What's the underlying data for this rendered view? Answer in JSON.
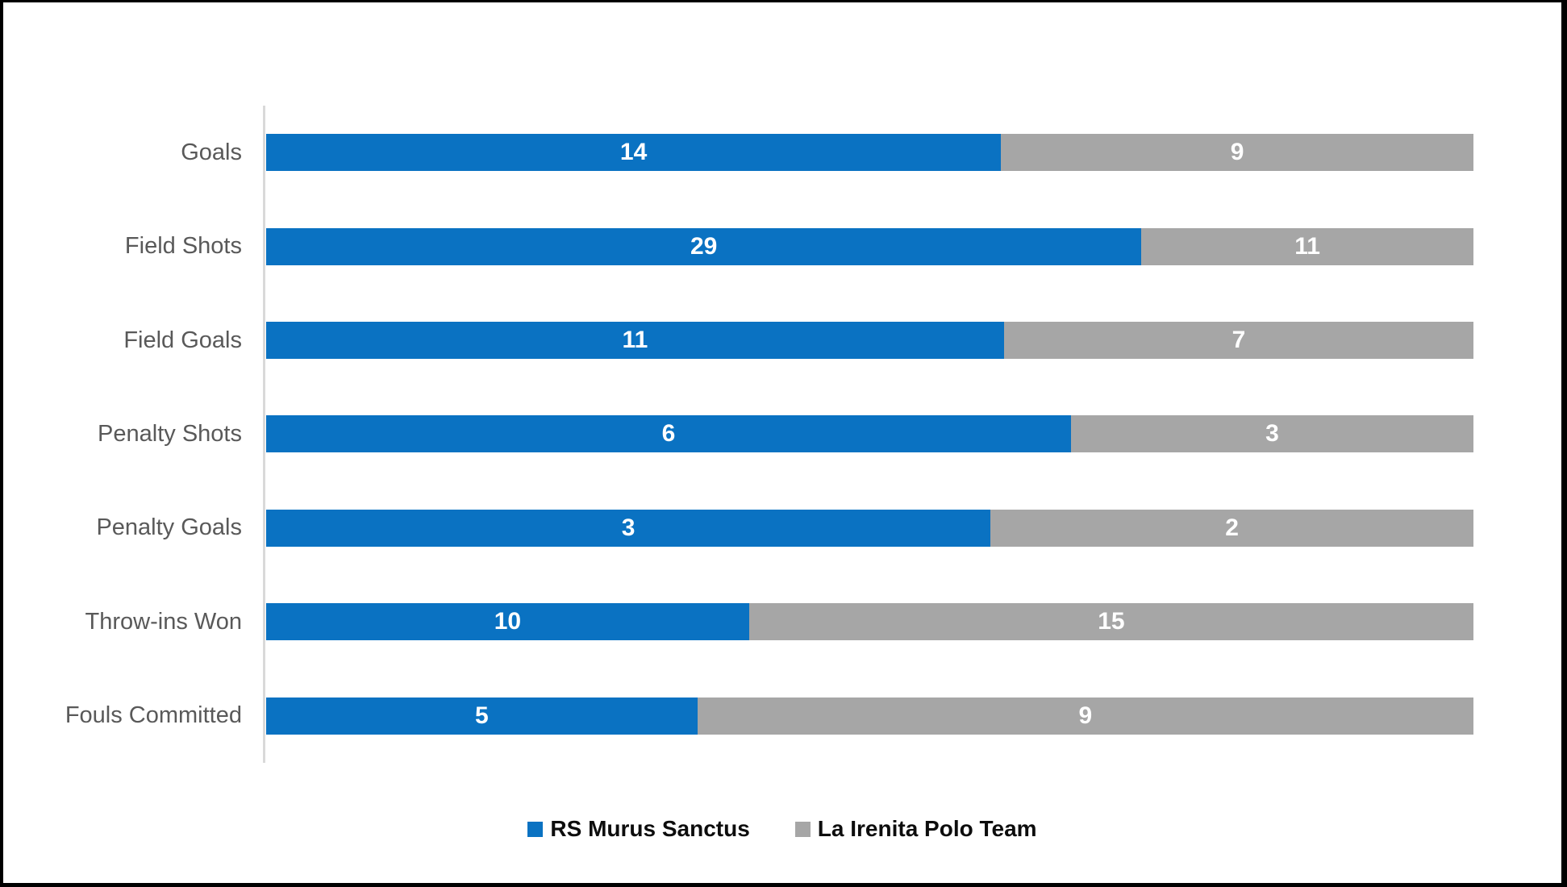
{
  "chart_data": {
    "type": "bar",
    "subtype": "horizontal-100-percent-stacked",
    "title": "",
    "xlabel": "",
    "ylabel": "",
    "grid": false,
    "legend_position": "bottom",
    "value_labels": "inside-center",
    "categories": [
      "Goals",
      "Field Shots",
      "Field Goals",
      "Penalty Shots",
      "Penalty Goals",
      "Throw-ins Won",
      "Fouls Committed"
    ],
    "series": [
      {
        "name": "RS Murus Sanctus",
        "color": "#0A72C2",
        "values": [
          14,
          29,
          11,
          6,
          3,
          10,
          5
        ]
      },
      {
        "name": "La Irenita Polo Team",
        "color": "#A6A6A6",
        "values": [
          9,
          11,
          7,
          3,
          2,
          15,
          9
        ]
      }
    ],
    "colors": {
      "axis_line": "#D9D9D9",
      "category_label": "#595959",
      "value_label": "#FFFFFF",
      "frame_border": "#000000",
      "background": "#FFFFFF"
    }
  }
}
